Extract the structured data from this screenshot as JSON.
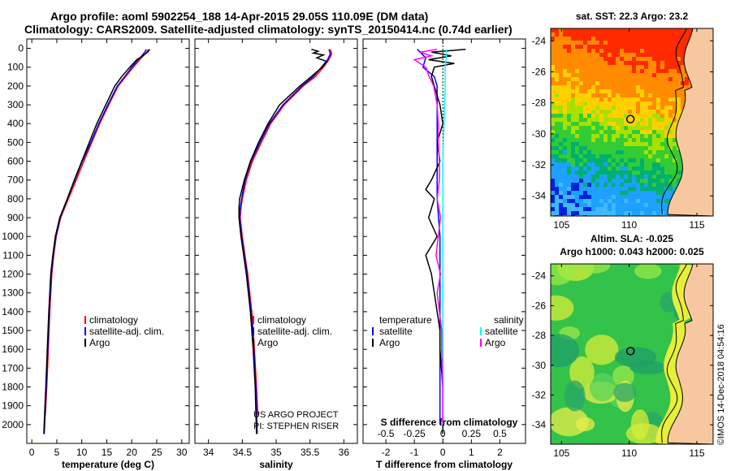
{
  "header": {
    "line1": "Argo profile: aoml 5902254_188 14-Apr-2015 29.05S 110.09E (DM data)",
    "line2": "Climatology: CARS2009. Satellite-adjusted climatology: synTS_20150414.nc (0.74d earlier)"
  },
  "credit": {
    "project": "US ARGO PROJECT",
    "pi": "PI: STEPHEN RISER"
  },
  "stamp": "©IMOS 14-Dec-2018 04:54:16",
  "colors": {
    "climatology": "#ff0000",
    "satellite": "#0000ff",
    "argo": "#000000",
    "sal_satellite": "#00ffff",
    "sal_climatology": "#ff00ff",
    "land": "#f7c8a0"
  },
  "chart_data": [
    {
      "type": "line",
      "id": "temperature",
      "xlabel": "temperature (deg C)",
      "xlim": [
        -1,
        31.5
      ],
      "xticks": [
        0,
        5,
        10,
        15,
        20,
        25,
        30
      ],
      "ylim": [
        2100,
        -50
      ],
      "yticks": [
        0,
        100,
        200,
        300,
        400,
        500,
        600,
        700,
        800,
        900,
        1000,
        1100,
        1200,
        1300,
        1400,
        1500,
        1600,
        1700,
        1800,
        1900,
        2000
      ],
      "legend": [
        "climatology",
        "satellite-adj. clim.",
        "Argo"
      ],
      "legend_pos": "lower-right",
      "series": [
        {
          "name": "climatology",
          "color": "#ff0000",
          "depth": [
            5,
            20,
            40,
            60,
            100,
            150,
            200,
            300,
            400,
            500,
            600,
            700,
            800,
            900,
            1000,
            1100,
            1200,
            1400,
            1600,
            1800,
            1950
          ],
          "values": [
            23.3,
            23.0,
            22.3,
            21.6,
            20.3,
            18.8,
            17.3,
            15.4,
            13.6,
            12.0,
            10.4,
            8.9,
            7.3,
            5.8,
            4.9,
            4.4,
            4.0,
            3.6,
            3.3,
            3.0,
            2.7
          ]
        },
        {
          "name": "satellite-adj. clim.",
          "color": "#0000ff",
          "depth": [
            5,
            20,
            40,
            60,
            100,
            150,
            200,
            300,
            400,
            500,
            600,
            700,
            800,
            900,
            1000,
            1100,
            1200,
            1400,
            1600,
            1800,
            2050
          ],
          "values": [
            22.9,
            22.6,
            22.0,
            21.3,
            20.0,
            18.6,
            17.1,
            15.2,
            13.4,
            11.8,
            10.1,
            8.6,
            7.1,
            5.7,
            4.8,
            4.3,
            3.9,
            3.5,
            3.2,
            2.9,
            2.5
          ]
        },
        {
          "name": "Argo",
          "color": "#000000",
          "depth": [
            5,
            20,
            40,
            60,
            100,
            150,
            200,
            300,
            400,
            500,
            600,
            700,
            800,
            900,
            1000,
            1100,
            1200,
            1400,
            1600,
            1800,
            2050
          ],
          "values": [
            23.6,
            23.2,
            22.2,
            21.0,
            19.6,
            18.0,
            16.6,
            14.8,
            13.0,
            11.5,
            10.0,
            8.5,
            7.1,
            5.6,
            4.7,
            4.2,
            3.8,
            3.4,
            3.1,
            2.8,
            2.4
          ]
        }
      ]
    },
    {
      "type": "line",
      "id": "salinity",
      "xlabel": "salinity",
      "xlim": [
        33.8,
        36.2
      ],
      "xticks": [
        34,
        34.5,
        35,
        35.5,
        36
      ],
      "xticklabels": [
        "34",
        "34.5",
        "35",
        "35.5",
        "36"
      ],
      "ylim": [
        2100,
        -50
      ],
      "legend": [
        "climatology",
        "satellite-adj. clim.",
        "Argo"
      ],
      "legend_pos": "lower-right",
      "series": [
        {
          "name": "climatology",
          "color": "#ff0000",
          "depth": [
            5,
            30,
            60,
            100,
            150,
            200,
            300,
            400,
            500,
            600,
            700,
            800,
            850,
            900,
            1000,
            1200,
            1400,
            1600,
            1800,
            1950
          ],
          "values": [
            35.8,
            35.82,
            35.78,
            35.7,
            35.58,
            35.4,
            35.12,
            34.92,
            34.78,
            34.65,
            34.56,
            34.5,
            34.48,
            34.47,
            34.5,
            34.58,
            34.64,
            34.68,
            34.71,
            34.73
          ]
        },
        {
          "name": "satellite-adj. clim.",
          "color": "#0000ff",
          "depth": [
            5,
            30,
            60,
            100,
            150,
            200,
            300,
            400,
            500,
            600,
            700,
            800,
            850,
            900,
            1000,
            1200,
            1400,
            1600,
            1800,
            2050
          ],
          "values": [
            35.78,
            35.8,
            35.76,
            35.67,
            35.55,
            35.38,
            35.1,
            34.9,
            34.76,
            34.63,
            34.54,
            34.49,
            34.47,
            34.46,
            34.49,
            34.57,
            34.63,
            34.67,
            34.7,
            34.72
          ]
        },
        {
          "name": "Argo",
          "color": "#000000",
          "depth": [
            5,
            15,
            25,
            35,
            50,
            70,
            100,
            150,
            200,
            300,
            400,
            500,
            600,
            700,
            800,
            850,
            900,
            1000,
            1200,
            1400,
            1600,
            1800,
            2050
          ],
          "values": [
            35.52,
            35.62,
            35.55,
            35.7,
            35.6,
            35.75,
            35.68,
            35.52,
            35.35,
            35.05,
            34.88,
            34.74,
            34.62,
            34.53,
            34.46,
            34.45,
            34.45,
            34.48,
            34.56,
            34.62,
            34.66,
            34.69,
            34.71
          ]
        }
      ]
    },
    {
      "type": "line",
      "id": "differences",
      "xlabel": "T difference from climatology",
      "xlim": [
        -2.8,
        2.9
      ],
      "xticks": [
        -2,
        -1,
        0,
        1,
        2
      ],
      "top_axis": {
        "label": "S difference from climatology",
        "ticks": [
          -0.5,
          -0.25,
          0,
          0.25,
          0.5
        ],
        "ticklabels": [
          "-0.5",
          "-0.25",
          "0",
          "0.25",
          "0.5"
        ],
        "range": [
          -0.7,
          0.725
        ]
      },
      "ylim": [
        2100,
        -50
      ],
      "legend_left": {
        "title": "temperature",
        "items": [
          "satellite",
          "Argo"
        ]
      },
      "legend_right": {
        "title": "salinity",
        "items": [
          "satellite",
          "Argo"
        ]
      },
      "series": [
        {
          "name": "T satellite",
          "color": "#0000ff",
          "depth": [
            5,
            20,
            50,
            100,
            150,
            200,
            300,
            400,
            500,
            600,
            700,
            800,
            1000,
            1200,
            1400,
            1600,
            1800,
            2000
          ],
          "values": [
            -0.9,
            -0.8,
            -0.6,
            -0.7,
            -0.3,
            -0.2,
            -0.2,
            -0.2,
            -0.2,
            -0.2,
            -0.2,
            -0.2,
            -0.1,
            -0.1,
            -0.1,
            -0.1,
            -0.1,
            -0.1
          ]
        },
        {
          "name": "T Argo",
          "color": "#000000",
          "depth": [
            5,
            20,
            40,
            60,
            80,
            100,
            150,
            200,
            300,
            400,
            500,
            600,
            700,
            750,
            800,
            900,
            1000,
            1100,
            1200,
            1300,
            1400,
            1500,
            1600,
            1800,
            2050
          ],
          "values": [
            0.8,
            -0.4,
            0.3,
            -0.5,
            0.4,
            -0.3,
            -0.4,
            -0.3,
            -0.1,
            0.0,
            -0.2,
            -0.1,
            -0.4,
            -0.6,
            -0.3,
            -0.5,
            -0.2,
            -0.6,
            -0.4,
            -0.3,
            -0.2,
            -0.1,
            -0.1,
            0.0,
            0.0
          ]
        },
        {
          "name": "S satellite",
          "color": "#00ffff",
          "depth": [
            5,
            50,
            100,
            200,
            400,
            600,
            800,
            1000,
            1200,
            1400,
            1600,
            1800,
            2000
          ],
          "values": [
            0.03,
            0.03,
            0.02,
            0.02,
            0.01,
            0.0,
            0.0,
            0.0,
            0.0,
            0.0,
            0.0,
            0.0,
            0.0
          ]
        },
        {
          "name": "S Argo",
          "color": "#ff00ff",
          "depth": [
            5,
            20,
            40,
            60,
            100,
            150,
            200,
            300,
            400,
            500,
            600,
            700,
            800,
            900,
            1000,
            1100,
            1200,
            1300,
            1400,
            1500,
            1600,
            1800,
            2000
          ],
          "values": [
            -0.05,
            -0.2,
            -0.1,
            -0.25,
            -0.15,
            -0.12,
            -0.08,
            -0.05,
            -0.04,
            -0.04,
            -0.03,
            -0.03,
            -0.05,
            -0.02,
            -0.04,
            -0.06,
            -0.02,
            -0.05,
            -0.03,
            -0.01,
            -0.01,
            0.0,
            0.0
          ]
        }
      ]
    },
    {
      "type": "heatmap",
      "id": "sst_map",
      "title": "sat. SST: 22.3 Argo: 23.2",
      "xticks": [
        105,
        110,
        115
      ],
      "yticks": [
        -24,
        -26,
        -28,
        -30,
        -32,
        -34
      ],
      "xlim": [
        104.2,
        116.2
      ],
      "ylim": [
        -35.3,
        -23.2
      ],
      "float_position": {
        "lon": 110.09,
        "lat": -29.05
      }
    },
    {
      "type": "heatmap",
      "id": "sla_map",
      "title": "Altim. SLA: -0.025",
      "subtitle": "Argo h1000: 0.043 h2000: 0.025",
      "xticks": [
        105,
        110,
        115
      ],
      "yticks": [
        -24,
        -26,
        -28,
        -30,
        -32,
        -34
      ],
      "xlim": [
        104.2,
        116.2
      ],
      "ylim": [
        -35.3,
        -23.2
      ],
      "float_position": {
        "lon": 110.09,
        "lat": -29.05
      }
    }
  ]
}
